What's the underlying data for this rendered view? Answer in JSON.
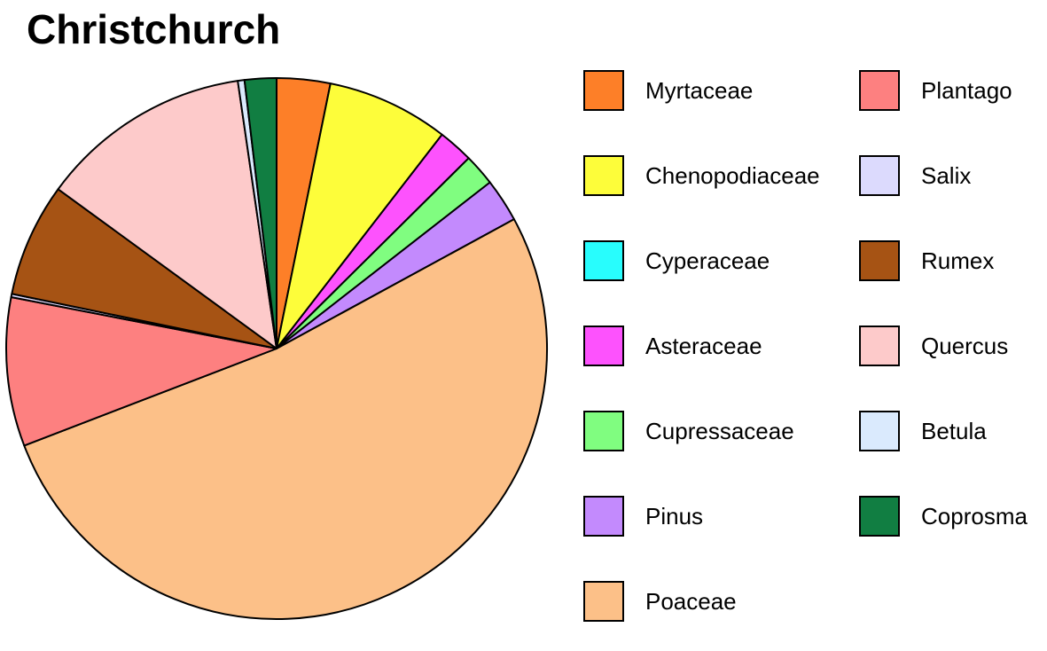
{
  "chart_data": {
    "type": "pie",
    "title": "Christchurch",
    "legend_position": "right",
    "slices": [
      {
        "label": "Myrtaceae",
        "value": 3.2,
        "color": "#fd7f28"
      },
      {
        "label": "Chenopodiaceae",
        "value": 7.3,
        "color": "#fdfd3a"
      },
      {
        "label": "Cyperaceae",
        "value": 0.0,
        "color": "#28fdfd"
      },
      {
        "label": "Asteraceae",
        "value": 2.1,
        "color": "#fd52fd"
      },
      {
        "label": "Cupressaceae",
        "value": 1.9,
        "color": "#80fd80"
      },
      {
        "label": "Pinus",
        "value": 2.6,
        "color": "#c38afd"
      },
      {
        "label": "Poaceae",
        "value": 52.2,
        "color": "#fcc088"
      },
      {
        "label": "Plantago",
        "value": 8.9,
        "color": "#fd8080"
      },
      {
        "label": "Salix",
        "value": 0.2,
        "color": "#dcdafd"
      },
      {
        "label": "Rumex",
        "value": 6.8,
        "color": "#a65314"
      },
      {
        "label": "Quercus",
        "value": 12.7,
        "color": "#fdcaca"
      },
      {
        "label": "Betula",
        "value": 0.4,
        "color": "#daeafd"
      },
      {
        "label": "Coprosma",
        "value": 1.9,
        "color": "#117e42"
      }
    ]
  }
}
